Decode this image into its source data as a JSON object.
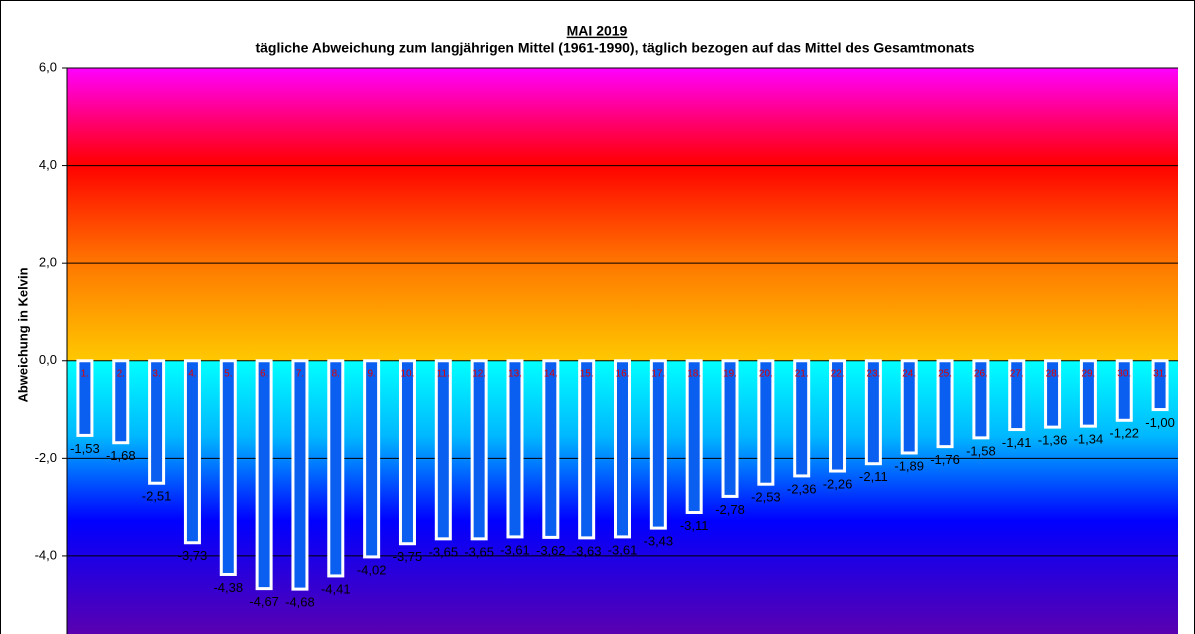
{
  "chart_data": {
    "type": "bar",
    "title": "MAI 2019",
    "subtitle": "tägliche Abweichung zum langjährigen Mittel (1961-1990), täglich bezogen auf das Mittel des Gesamtmonats",
    "y_label": "Abweichung in Kelvin",
    "categories": [
      "1.",
      "2.",
      "3.",
      "4.",
      "5.",
      "6.",
      "7.",
      "8.",
      "9.",
      "10.",
      "11.",
      "12.",
      "13.",
      "14.",
      "15.",
      "16.",
      "17.",
      "18.",
      "19.",
      "20.",
      "21.",
      "22.",
      "23.",
      "24.",
      "25.",
      "26.",
      "27.",
      "28.",
      "29.",
      "30.",
      "31."
    ],
    "values": [
      -1.53,
      -1.68,
      -2.51,
      -3.73,
      -4.38,
      -4.67,
      -4.68,
      -4.41,
      -4.02,
      -3.75,
      -3.65,
      -3.65,
      -3.61,
      -3.62,
      -3.63,
      -3.61,
      -3.43,
      -3.11,
      -2.78,
      -2.53,
      -2.36,
      -2.26,
      -2.11,
      -1.89,
      -1.76,
      -1.58,
      -1.41,
      -1.36,
      -1.34,
      -1.22,
      -1.0
    ],
    "value_labels": [
      "-1,53",
      "-1,68",
      "-2,51",
      "-3,73",
      "-4,38",
      "-4,67",
      "-4,68",
      "-4,41",
      "-4,02",
      "-3,75",
      "-3,65",
      "-3,65",
      "-3,61",
      "-3,62",
      "-3,63",
      "-3,61",
      "-3,43",
      "-3,11",
      "-2,78",
      "-2,53",
      "-2,36",
      "-2,26",
      "-2,11",
      "-1,89",
      "-1,76",
      "-1,58",
      "-1,41",
      "-1,36",
      "-1,34",
      "-1,22",
      "-1,00"
    ],
    "color": "#0a5ff0",
    "ylim": [
      -5.6,
      6
    ],
    "yticks": [
      {
        "value": 6,
        "label": "6,0"
      },
      {
        "value": 4,
        "label": "4,0"
      },
      {
        "value": 2,
        "label": "2,0"
      },
      {
        "value": 0,
        "label": "0,0"
      },
      {
        "value": -2,
        "label": "-2,0"
      },
      {
        "value": -4,
        "label": "-4,0"
      }
    ],
    "grid": true
  }
}
